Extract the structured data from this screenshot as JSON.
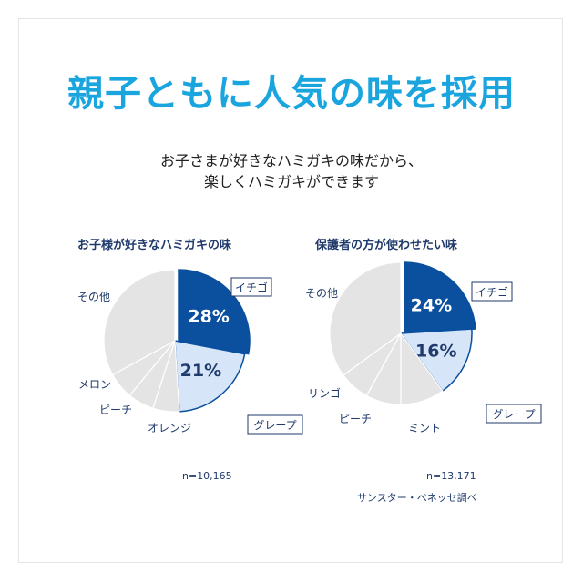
{
  "headline": "親子ともに人気の味を採用",
  "subtitle_line1": "お子さまが好きなハミガキの味だから、",
  "subtitle_line2": "楽しくハミガキができます",
  "source": "サンスター・ベネッセ調べ",
  "colors": {
    "headline": "#1aa5df",
    "top_slice": "#0b4f9f",
    "second_slice": "#d6e6f8",
    "other_slice": "#e4e4e4",
    "slice_border": "#0b4f9f",
    "label_text": "#1f3a6b"
  },
  "chart_data": [
    {
      "type": "pie",
      "title": "お子様が好きなハミガキの味",
      "n_label": "n=10,165",
      "categories": [
        "イチゴ",
        "グレープ",
        "オレンジ",
        "ピーチ",
        "メロン",
        "その他"
      ],
      "values": [
        28,
        21,
        6,
        6,
        6,
        33
      ],
      "data_labels": [
        "28%",
        "21%",
        "",
        "",
        "",
        ""
      ]
    },
    {
      "type": "pie",
      "title": "保護者の方が使わせたい味",
      "n_label": "n=13,171",
      "categories": [
        "イチゴ",
        "グレープ",
        "ミント",
        "ピーチ",
        "リンゴ",
        "その他"
      ],
      "values": [
        24,
        16,
        10,
        8,
        7,
        35
      ],
      "data_labels": [
        "24%",
        "16%",
        "",
        "",
        "",
        ""
      ]
    }
  ]
}
